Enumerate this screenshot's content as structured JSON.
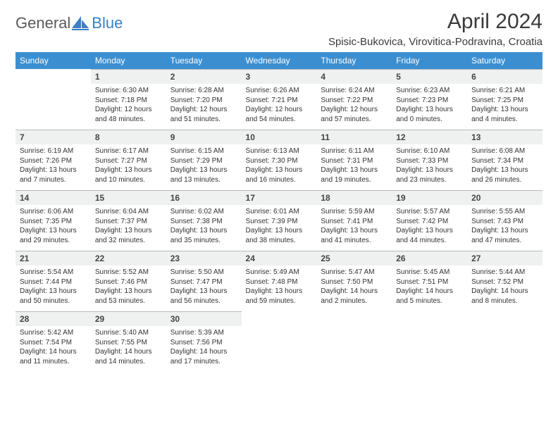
{
  "logo": {
    "part1": "General",
    "part2": "Blue"
  },
  "title": "April 2024",
  "location": "Spisic-Bukovica, Virovitica-Podravina, Croatia",
  "colors": {
    "header_bg": "#3b8fd1",
    "header_text": "#ffffff",
    "daynum_bg": "#eff0f0",
    "daynum_border": "#b8b8b8",
    "text": "#333333",
    "logo_gray": "#5a5a5a",
    "logo_blue": "#3b7fc4"
  },
  "weekdays": [
    "Sunday",
    "Monday",
    "Tuesday",
    "Wednesday",
    "Thursday",
    "Friday",
    "Saturday"
  ],
  "weeks": [
    [
      {
        "num": "",
        "lines": [
          "",
          "",
          "",
          ""
        ]
      },
      {
        "num": "1",
        "lines": [
          "Sunrise: 6:30 AM",
          "Sunset: 7:18 PM",
          "Daylight: 12 hours",
          "and 48 minutes."
        ]
      },
      {
        "num": "2",
        "lines": [
          "Sunrise: 6:28 AM",
          "Sunset: 7:20 PM",
          "Daylight: 12 hours",
          "and 51 minutes."
        ]
      },
      {
        "num": "3",
        "lines": [
          "Sunrise: 6:26 AM",
          "Sunset: 7:21 PM",
          "Daylight: 12 hours",
          "and 54 minutes."
        ]
      },
      {
        "num": "4",
        "lines": [
          "Sunrise: 6:24 AM",
          "Sunset: 7:22 PM",
          "Daylight: 12 hours",
          "and 57 minutes."
        ]
      },
      {
        "num": "5",
        "lines": [
          "Sunrise: 6:23 AM",
          "Sunset: 7:23 PM",
          "Daylight: 13 hours",
          "and 0 minutes."
        ]
      },
      {
        "num": "6",
        "lines": [
          "Sunrise: 6:21 AM",
          "Sunset: 7:25 PM",
          "Daylight: 13 hours",
          "and 4 minutes."
        ]
      }
    ],
    [
      {
        "num": "7",
        "lines": [
          "Sunrise: 6:19 AM",
          "Sunset: 7:26 PM",
          "Daylight: 13 hours",
          "and 7 minutes."
        ]
      },
      {
        "num": "8",
        "lines": [
          "Sunrise: 6:17 AM",
          "Sunset: 7:27 PM",
          "Daylight: 13 hours",
          "and 10 minutes."
        ]
      },
      {
        "num": "9",
        "lines": [
          "Sunrise: 6:15 AM",
          "Sunset: 7:29 PM",
          "Daylight: 13 hours",
          "and 13 minutes."
        ]
      },
      {
        "num": "10",
        "lines": [
          "Sunrise: 6:13 AM",
          "Sunset: 7:30 PM",
          "Daylight: 13 hours",
          "and 16 minutes."
        ]
      },
      {
        "num": "11",
        "lines": [
          "Sunrise: 6:11 AM",
          "Sunset: 7:31 PM",
          "Daylight: 13 hours",
          "and 19 minutes."
        ]
      },
      {
        "num": "12",
        "lines": [
          "Sunrise: 6:10 AM",
          "Sunset: 7:33 PM",
          "Daylight: 13 hours",
          "and 23 minutes."
        ]
      },
      {
        "num": "13",
        "lines": [
          "Sunrise: 6:08 AM",
          "Sunset: 7:34 PM",
          "Daylight: 13 hours",
          "and 26 minutes."
        ]
      }
    ],
    [
      {
        "num": "14",
        "lines": [
          "Sunrise: 6:06 AM",
          "Sunset: 7:35 PM",
          "Daylight: 13 hours",
          "and 29 minutes."
        ]
      },
      {
        "num": "15",
        "lines": [
          "Sunrise: 6:04 AM",
          "Sunset: 7:37 PM",
          "Daylight: 13 hours",
          "and 32 minutes."
        ]
      },
      {
        "num": "16",
        "lines": [
          "Sunrise: 6:02 AM",
          "Sunset: 7:38 PM",
          "Daylight: 13 hours",
          "and 35 minutes."
        ]
      },
      {
        "num": "17",
        "lines": [
          "Sunrise: 6:01 AM",
          "Sunset: 7:39 PM",
          "Daylight: 13 hours",
          "and 38 minutes."
        ]
      },
      {
        "num": "18",
        "lines": [
          "Sunrise: 5:59 AM",
          "Sunset: 7:41 PM",
          "Daylight: 13 hours",
          "and 41 minutes."
        ]
      },
      {
        "num": "19",
        "lines": [
          "Sunrise: 5:57 AM",
          "Sunset: 7:42 PM",
          "Daylight: 13 hours",
          "and 44 minutes."
        ]
      },
      {
        "num": "20",
        "lines": [
          "Sunrise: 5:55 AM",
          "Sunset: 7:43 PM",
          "Daylight: 13 hours",
          "and 47 minutes."
        ]
      }
    ],
    [
      {
        "num": "21",
        "lines": [
          "Sunrise: 5:54 AM",
          "Sunset: 7:44 PM",
          "Daylight: 13 hours",
          "and 50 minutes."
        ]
      },
      {
        "num": "22",
        "lines": [
          "Sunrise: 5:52 AM",
          "Sunset: 7:46 PM",
          "Daylight: 13 hours",
          "and 53 minutes."
        ]
      },
      {
        "num": "23",
        "lines": [
          "Sunrise: 5:50 AM",
          "Sunset: 7:47 PM",
          "Daylight: 13 hours",
          "and 56 minutes."
        ]
      },
      {
        "num": "24",
        "lines": [
          "Sunrise: 5:49 AM",
          "Sunset: 7:48 PM",
          "Daylight: 13 hours",
          "and 59 minutes."
        ]
      },
      {
        "num": "25",
        "lines": [
          "Sunrise: 5:47 AM",
          "Sunset: 7:50 PM",
          "Daylight: 14 hours",
          "and 2 minutes."
        ]
      },
      {
        "num": "26",
        "lines": [
          "Sunrise: 5:45 AM",
          "Sunset: 7:51 PM",
          "Daylight: 14 hours",
          "and 5 minutes."
        ]
      },
      {
        "num": "27",
        "lines": [
          "Sunrise: 5:44 AM",
          "Sunset: 7:52 PM",
          "Daylight: 14 hours",
          "and 8 minutes."
        ]
      }
    ],
    [
      {
        "num": "28",
        "lines": [
          "Sunrise: 5:42 AM",
          "Sunset: 7:54 PM",
          "Daylight: 14 hours",
          "and 11 minutes."
        ]
      },
      {
        "num": "29",
        "lines": [
          "Sunrise: 5:40 AM",
          "Sunset: 7:55 PM",
          "Daylight: 14 hours",
          "and 14 minutes."
        ]
      },
      {
        "num": "30",
        "lines": [
          "Sunrise: 5:39 AM",
          "Sunset: 7:56 PM",
          "Daylight: 14 hours",
          "and 17 minutes."
        ]
      },
      {
        "num": "",
        "lines": [
          "",
          "",
          "",
          ""
        ]
      },
      {
        "num": "",
        "lines": [
          "",
          "",
          "",
          ""
        ]
      },
      {
        "num": "",
        "lines": [
          "",
          "",
          "",
          ""
        ]
      },
      {
        "num": "",
        "lines": [
          "",
          "",
          "",
          ""
        ]
      }
    ]
  ]
}
